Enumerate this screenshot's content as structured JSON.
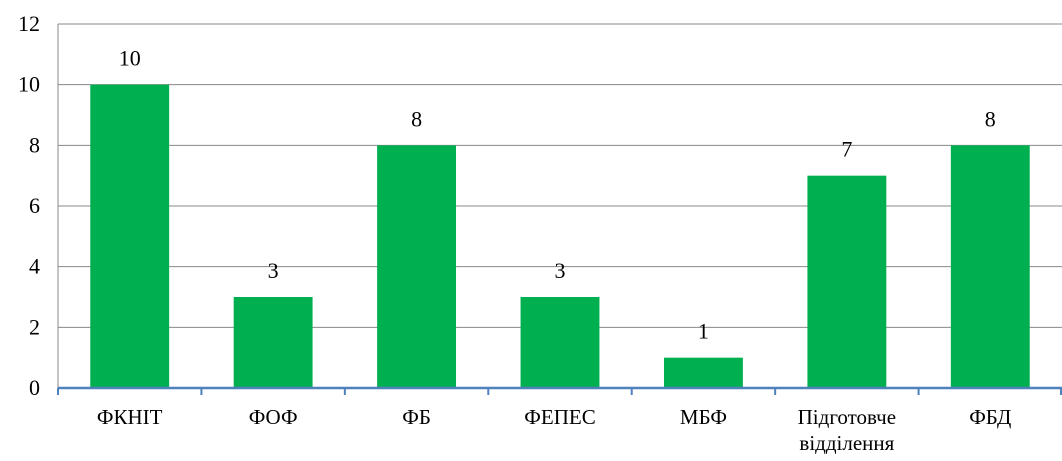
{
  "chart_data": {
    "type": "bar",
    "categories": [
      [
        "ФКНІТ"
      ],
      [
        "ФОФ"
      ],
      [
        "ФБ"
      ],
      [
        "ФЕПЕС"
      ],
      [
        "МБФ"
      ],
      [
        "Підготовче",
        "відділення"
      ],
      [
        "ФБД"
      ]
    ],
    "values": [
      10,
      3,
      8,
      3,
      1,
      7,
      8
    ],
    "ylim": [
      0,
      12
    ],
    "yticks": [
      0,
      2,
      4,
      6,
      8,
      10,
      12
    ],
    "grid": true,
    "data_labels": true,
    "legend": "none",
    "colors": {
      "bar": "#00b050",
      "grid": "#888888",
      "axis": "#4f81bd"
    }
  }
}
